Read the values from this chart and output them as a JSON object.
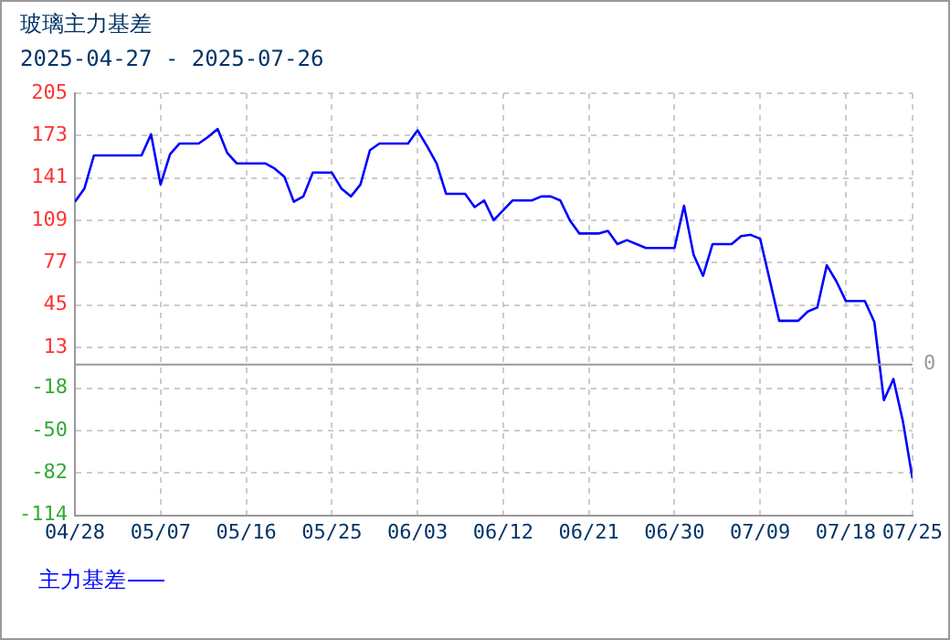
{
  "chart_data": {
    "type": "line",
    "title": "玻璃主力基差",
    "subtitle": "2025-04-27 - 2025-07-26",
    "x": [
      "2025-04-28",
      "2025-04-29",
      "2025-04-30",
      "2025-05-05",
      "2025-05-06",
      "2025-05-07",
      "2025-05-08",
      "2025-05-09",
      "2025-05-11",
      "2025-05-12",
      "2025-05-13",
      "2025-05-14",
      "2025-05-15",
      "2025-05-18",
      "2025-05-19",
      "2025-05-20",
      "2025-05-21",
      "2025-05-22",
      "2025-05-23",
      "2025-05-25",
      "2025-05-26",
      "2025-05-27",
      "2025-05-28",
      "2025-05-29",
      "2025-05-30",
      "2025-06-02",
      "2025-06-03",
      "2025-06-04",
      "2025-06-05",
      "2025-06-06",
      "2025-06-08",
      "2025-06-09",
      "2025-06-10",
      "2025-06-11",
      "2025-06-13",
      "2025-06-15",
      "2025-06-16",
      "2025-06-17",
      "2025-06-18",
      "2025-06-19",
      "2025-06-20",
      "2025-06-22",
      "2025-06-23",
      "2025-06-24",
      "2025-06-25",
      "2025-06-27",
      "2025-06-30",
      "2025-07-01",
      "2025-07-02",
      "2025-07-03",
      "2025-07-04",
      "2025-07-06",
      "2025-07-07",
      "2025-07-08",
      "2025-07-09",
      "2025-07-11",
      "2025-07-13",
      "2025-07-14",
      "2025-07-15",
      "2025-07-16",
      "2025-07-17",
      "2025-07-18",
      "2025-07-20",
      "2025-07-21",
      "2025-07-22",
      "2025-07-23",
      "2025-07-24",
      "2025-07-25"
    ],
    "series": [
      {
        "name": "主力基差",
        "color": "#0000ff",
        "values": [
          123,
          133,
          158,
          158,
          174,
          136,
          159,
          167,
          167,
          172,
          178,
          160,
          152,
          152,
          148,
          142,
          123,
          127,
          145,
          145,
          133,
          127,
          136,
          162,
          167,
          167,
          177,
          165,
          152,
          129,
          129,
          119,
          124,
          109,
          124,
          124,
          127,
          127,
          124,
          109,
          99,
          99,
          101,
          91,
          94,
          88,
          88,
          120,
          83,
          67,
          91,
          91,
          97,
          98,
          95,
          33,
          33,
          40,
          43,
          75,
          63,
          48,
          48,
          32,
          -27,
          -11,
          -43,
          -86
        ]
      }
    ],
    "xlim": [
      "2025-04-28",
      "2025-07-25"
    ],
    "xticks": [
      {
        "value": "2025-04-28",
        "label": "04/28"
      },
      {
        "value": "2025-05-07",
        "label": "05/07"
      },
      {
        "value": "2025-05-16",
        "label": "05/16"
      },
      {
        "value": "2025-05-25",
        "label": "05/25"
      },
      {
        "value": "2025-06-03",
        "label": "06/03"
      },
      {
        "value": "2025-06-12",
        "label": "06/12"
      },
      {
        "value": "2025-06-21",
        "label": "06/21"
      },
      {
        "value": "2025-06-30",
        "label": "06/30"
      },
      {
        "value": "2025-07-09",
        "label": "07/09"
      },
      {
        "value": "2025-07-18",
        "label": "07/18"
      },
      {
        "value": "2025-07-25",
        "label": "07/25"
      }
    ],
    "ylim": [
      -114,
      205
    ],
    "yticks": [
      -114,
      -82,
      -50,
      -18,
      13,
      45,
      77,
      109,
      141,
      173,
      205
    ],
    "ref_lines": [
      {
        "axis": "y",
        "value": 0,
        "label": "0",
        "color": "#999999"
      }
    ],
    "grid": true,
    "legend": "bottom left",
    "marker": "none",
    "line_style": "solid"
  }
}
